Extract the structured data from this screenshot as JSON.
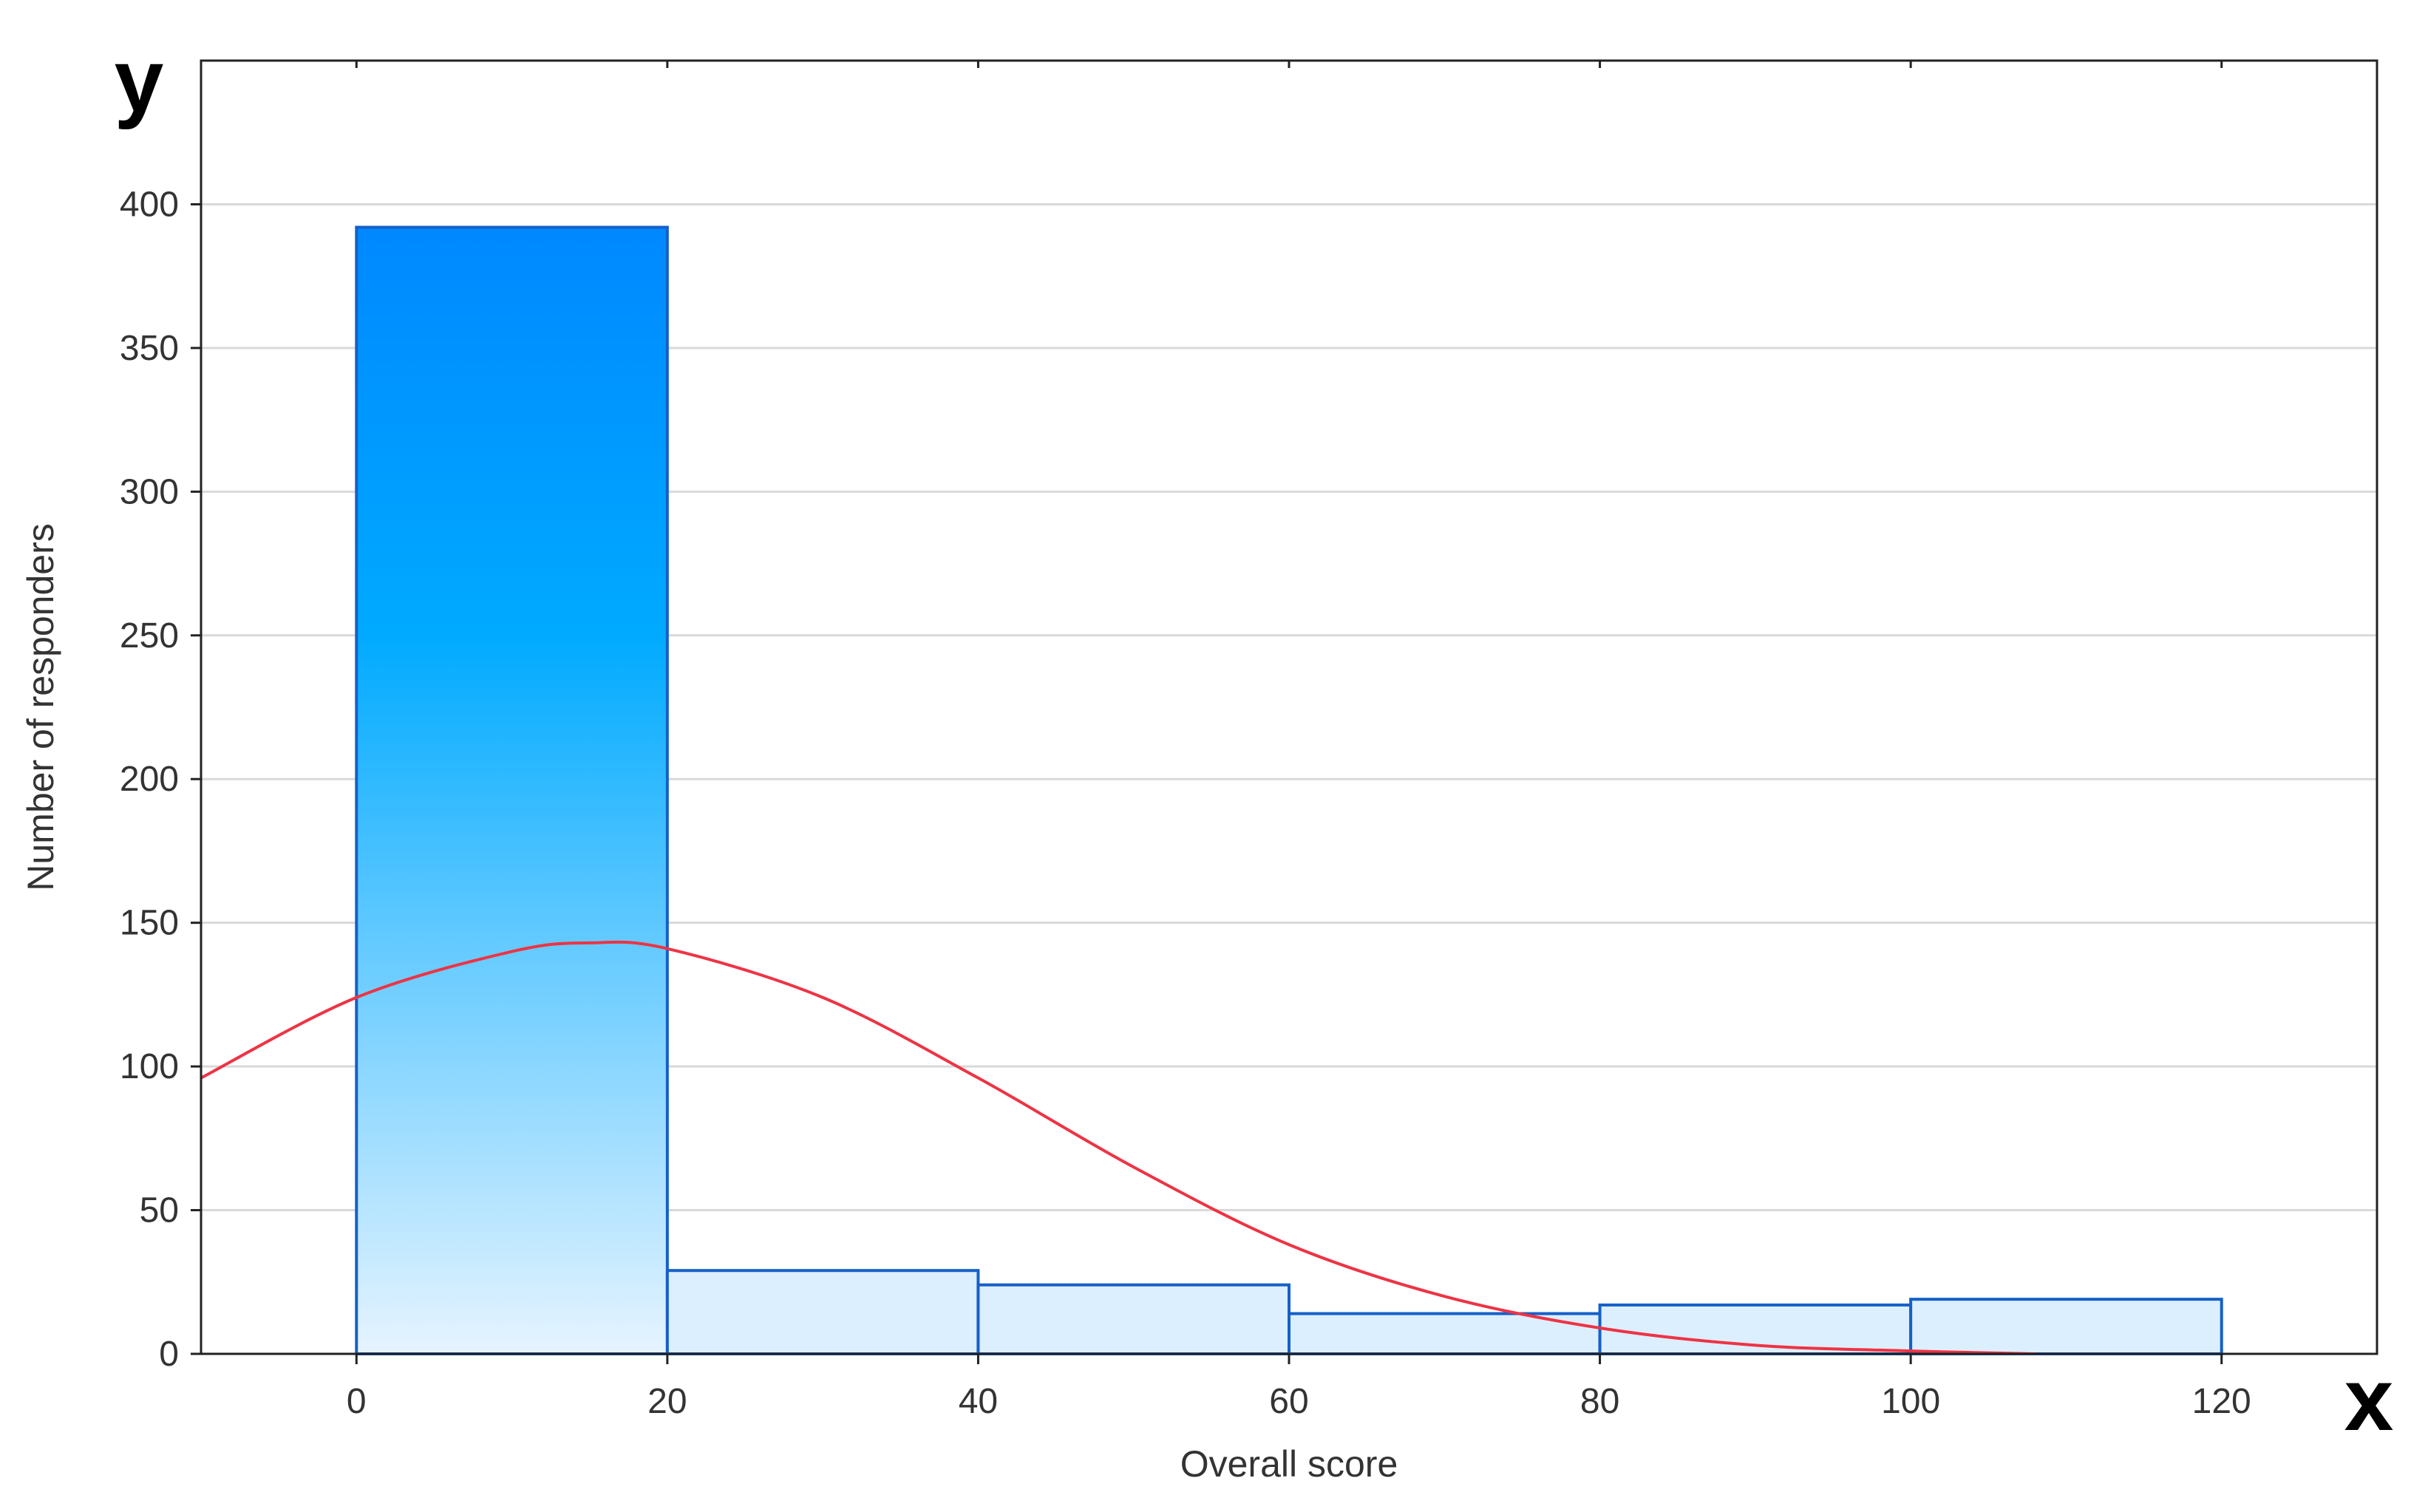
{
  "chart_data": {
    "type": "bar",
    "subtype": "histogram",
    "bins": [
      {
        "from": 0,
        "to": 20,
        "count": 392
      },
      {
        "from": 20,
        "to": 40,
        "count": 29
      },
      {
        "from": 40,
        "to": 60,
        "count": 24
      },
      {
        "from": 60,
        "to": 80,
        "count": 14
      },
      {
        "from": 80,
        "to": 100,
        "count": 17
      },
      {
        "from": 100,
        "to": 120,
        "count": 19
      }
    ],
    "fit_curve": {
      "type": "normal",
      "points": [
        [
          -10,
          96
        ],
        [
          0,
          124
        ],
        [
          10,
          140
        ],
        [
          15,
          143
        ],
        [
          20,
          141
        ],
        [
          30,
          124
        ],
        [
          40,
          96
        ],
        [
          50,
          65
        ],
        [
          60,
          38
        ],
        [
          70,
          20
        ],
        [
          80,
          9
        ],
        [
          90,
          3
        ],
        [
          100,
          1
        ],
        [
          108,
          0
        ]
      ]
    },
    "xlabel": "Overall score",
    "ylabel": "Number of responders",
    "x_axis_letter": "x",
    "y_axis_letter": "y",
    "xlim": [
      -10,
      130
    ],
    "ylim": [
      0,
      450
    ],
    "xticks": [
      0,
      20,
      40,
      60,
      80,
      100,
      120
    ],
    "yticks": [
      0,
      50,
      100,
      150,
      200,
      250,
      300,
      350,
      400
    ],
    "grid": "horizontal",
    "colors": {
      "bar_gradient_top": "#0088ff",
      "bar_gradient_mid": "#00aaff",
      "bar_gradient_bottom": "#e6f4ff",
      "bar_fill_light": "#dcefff",
      "bar_stroke": "#1560c8",
      "fit_curve": "#ee3344",
      "grid": "#d9d9d9",
      "frame": "#222222"
    }
  }
}
